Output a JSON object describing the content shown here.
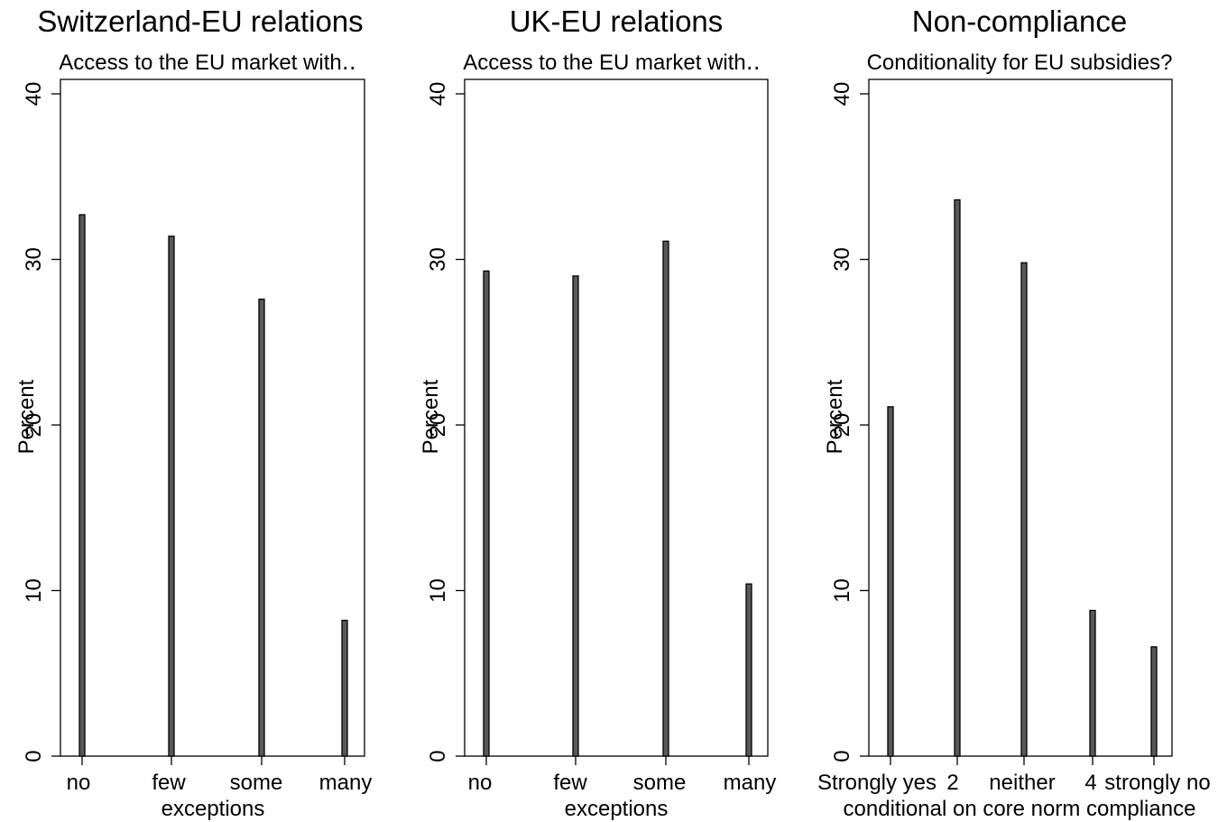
{
  "chart_data": [
    {
      "type": "bar",
      "title": "Switzerland-EU relations",
      "subtitle": "Access to the EU market with‥",
      "xlabel": "exceptions",
      "ylabel": "Percent",
      "categories": [
        "no",
        "few",
        "some",
        "many"
      ],
      "values": [
        32.7,
        31.4,
        27.6,
        8.2
      ],
      "ylim": [
        0,
        40
      ],
      "yticks": [
        0,
        10,
        20,
        30,
        40
      ],
      "grid": false
    },
    {
      "type": "bar",
      "title": "UK-EU relations",
      "subtitle": "Access to the EU market with‥",
      "xlabel": "exceptions",
      "ylabel": "Percent",
      "categories": [
        "no",
        "few",
        "some",
        "many"
      ],
      "values": [
        29.3,
        29.0,
        31.1,
        10.4
      ],
      "ylim": [
        0,
        40
      ],
      "yticks": [
        0,
        10,
        20,
        30,
        40
      ],
      "grid": false
    },
    {
      "type": "bar",
      "title": "Non-compliance",
      "subtitle": "Conditionality for EU subsidies?",
      "xlabel": "conditional on core norm compliance",
      "ylabel": "Percent",
      "categories": [
        "Strongly yes",
        "2",
        "neither",
        "4",
        "strongly no"
      ],
      "values": [
        21.1,
        33.6,
        29.8,
        8.8,
        6.6
      ],
      "ylim": [
        0,
        40
      ],
      "yticks": [
        0,
        10,
        20,
        30,
        40
      ],
      "grid": false
    }
  ]
}
